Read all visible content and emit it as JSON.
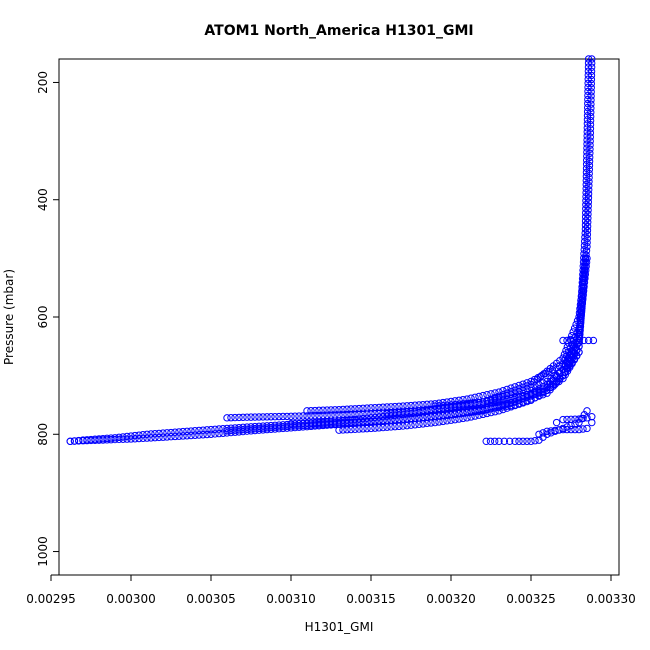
{
  "chart_data": {
    "type": "scatter",
    "title": "ATOM1 North_America H1301_GMI",
    "xlabel": "H1301_GMI",
    "ylabel": "Pressure (mbar)",
    "xlim": [
      0.002955,
      0.003305
    ],
    "ylim": [
      1040,
      160
    ],
    "y_reversed": true,
    "x_ticks": [
      "0.00295",
      "0.00300",
      "0.00305",
      "0.00310",
      "0.00315",
      "0.00320",
      "0.00325",
      "0.00330"
    ],
    "x_tick_values": [
      0.00295,
      0.003,
      0.00305,
      0.0031,
      0.00315,
      0.0032,
      0.00325,
      0.0033
    ],
    "y_ticks": [
      "200",
      "400",
      "600",
      "800",
      "1000"
    ],
    "y_tick_values": [
      200,
      400,
      600,
      800,
      1000
    ],
    "marker": "open-circle",
    "marker_color": "#0000ff",
    "grid": false,
    "legend": "none",
    "series": [
      {
        "x": [
          0.002962,
          0.00297,
          0.00298,
          0.00299,
          0.003,
          0.00301,
          0.00303,
          0.00306,
          0.0031,
          0.00314,
          0.00318,
          0.00322,
          0.00325,
          0.00327,
          0.00328,
          0.003285,
          0.003287,
          0.003288
        ],
        "y": [
          812,
          810,
          808,
          806,
          803,
          800,
          796,
          790,
          783,
          775,
          763,
          745,
          715,
          670,
          600,
          480,
          300,
          160
        ]
      },
      {
        "x": [
          0.002962,
          0.00297,
          0.00298,
          0.00299,
          0.003,
          0.00302,
          0.00305,
          0.00308,
          0.00312,
          0.00316,
          0.0032,
          0.00324,
          0.00326,
          0.00327,
          0.00328,
          0.003284,
          0.003286
        ],
        "y": [
          812,
          811,
          810,
          809,
          808,
          805,
          800,
          793,
          785,
          777,
          767,
          750,
          730,
          700,
          640,
          450,
          160
        ]
      },
      {
        "x": [
          0.00306,
          0.00308,
          0.0031,
          0.00313,
          0.00316,
          0.00319,
          0.00322,
          0.00324,
          0.00326,
          0.00327,
          0.00328,
          0.003285
        ],
        "y": [
          794,
          790,
          786,
          782,
          777,
          770,
          760,
          745,
          720,
          690,
          630,
          500
        ]
      },
      {
        "x": [
          0.00306,
          0.00307,
          0.00309,
          0.00312,
          0.00315,
          0.00318,
          0.0032,
          0.00323,
          0.00325,
          0.00326,
          0.00327,
          0.00328,
          0.003283
        ],
        "y": [
          772,
          771,
          770,
          768,
          765,
          760,
          755,
          745,
          730,
          715,
          690,
          640,
          550
        ]
      },
      {
        "x": [
          0.0031,
          0.00312,
          0.00314,
          0.00316,
          0.00318,
          0.0032,
          0.00322,
          0.00324,
          0.00326,
          0.00327,
          0.00328
        ],
        "y": [
          782,
          781,
          779,
          776,
          772,
          766,
          757,
          744,
          725,
          700,
          650
        ]
      },
      {
        "x": [
          0.00313,
          0.00315,
          0.00317,
          0.00319,
          0.00321,
          0.00323,
          0.00325,
          0.00326,
          0.00327,
          0.00328
        ],
        "y": [
          793,
          790,
          786,
          780,
          772,
          760,
          742,
          725,
          700,
          660
        ]
      },
      {
        "x": [
          0.00311,
          0.00313,
          0.00315,
          0.00317,
          0.00319,
          0.00321,
          0.00323,
          0.00325,
          0.00327,
          0.00328
        ],
        "y": [
          760,
          758,
          755,
          752,
          748,
          740,
          728,
          710,
          680,
          620
        ]
      },
      {
        "x": [
          0.00316,
          0.00318,
          0.0032,
          0.00322,
          0.00324,
          0.00326,
          0.00327,
          0.00328,
          0.003284
        ],
        "y": [
          765,
          760,
          753,
          745,
          730,
          710,
          690,
          650,
          500
        ]
      },
      {
        "x": [
          0.003222,
          0.00323,
          0.00324,
          0.00325,
          0.003255,
          0.00326,
          0.00327,
          0.00328,
          0.003285
        ],
        "y": [
          812,
          812,
          812,
          812,
          810,
          800,
          790,
          780,
          760
        ]
      },
      {
        "x": [
          0.003255,
          0.00326,
          0.00327,
          0.00328,
          0.003285,
          0.003288
        ],
        "y": [
          800,
          795,
          792,
          792,
          790,
          780
        ]
      },
      {
        "x": [
          0.003266,
          0.00327,
          0.00328,
          0.003285,
          0.003288
        ],
        "y": [
          780,
          775,
          774,
          772,
          770
        ]
      },
      {
        "x": [
          0.00327,
          0.003275,
          0.00328,
          0.003286,
          0.003289
        ],
        "y": [
          640,
          640,
          640,
          640,
          640
        ]
      },
      {
        "x": [
          0.00319,
          0.0032,
          0.00322,
          0.00324,
          0.00326,
          0.00327,
          0.00328
        ],
        "y": [
          752,
          750,
          745,
          738,
          725,
          705,
          660
        ]
      }
    ]
  }
}
